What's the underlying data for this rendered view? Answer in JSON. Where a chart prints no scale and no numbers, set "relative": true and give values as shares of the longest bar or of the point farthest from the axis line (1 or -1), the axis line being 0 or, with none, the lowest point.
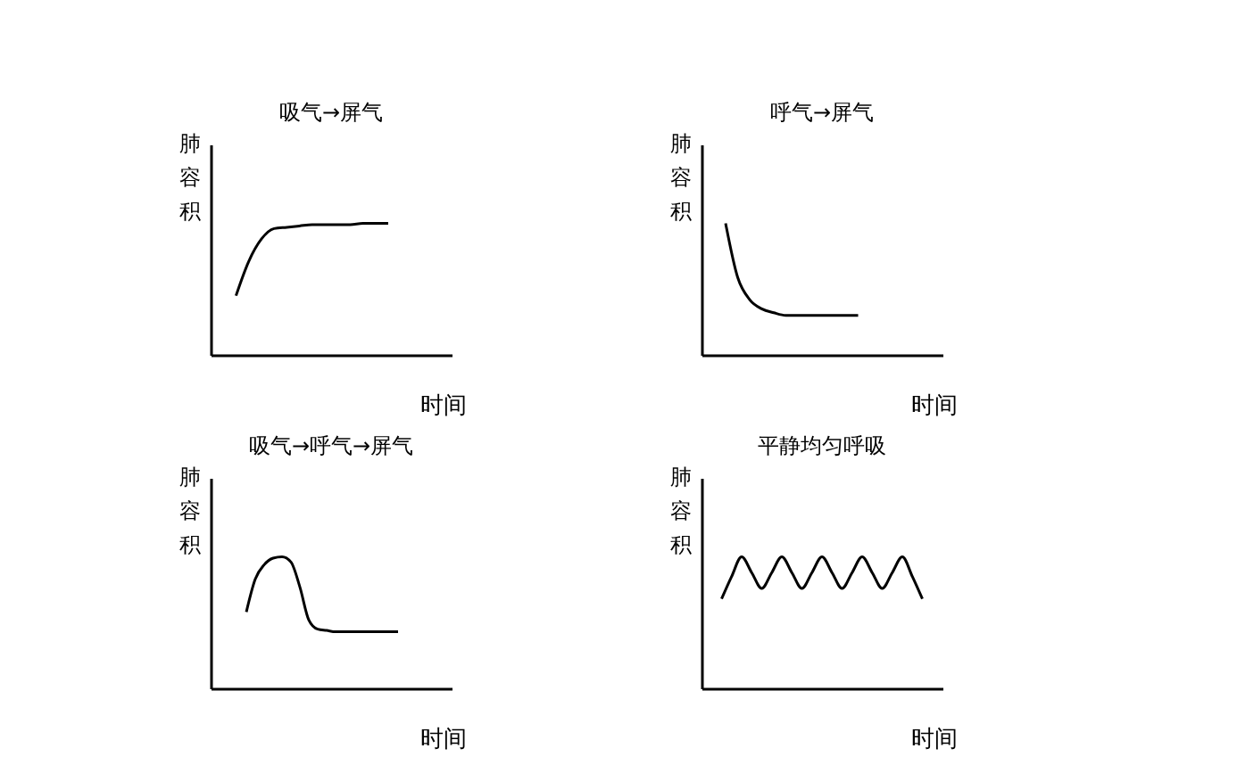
{
  "chart_data": [
    {
      "type": "line",
      "title": "吸气→屏气",
      "xlabel": "时间",
      "ylabel": "肺容积",
      "relative": true,
      "color": "#000000",
      "categories": [
        null,
        null,
        null,
        null,
        null,
        null,
        null,
        null,
        null,
        null,
        null,
        null,
        null,
        null,
        null,
        null,
        null,
        null,
        null,
        null
      ],
      "values": [
        null,
        null,
        0.45,
        0.71,
        0.88,
        0.96,
        0.97,
        0.98,
        0.99,
        0.99,
        0.99,
        0.99,
        1.0,
        1.0,
        1.0,
        null,
        null,
        null,
        null,
        null
      ]
    },
    {
      "type": "line",
      "title": "呼气→屏气",
      "xlabel": "时间",
      "ylabel": "肺容积",
      "relative": true,
      "color": "#000000",
      "categories": [
        null,
        null,
        null,
        null,
        null,
        null,
        null,
        null,
        null,
        null,
        null,
        null,
        null,
        null,
        null,
        null,
        null,
        null,
        null,
        null,
        null
      ],
      "values": [
        null,
        null,
        1.0,
        0.59,
        0.42,
        0.35,
        0.32,
        0.3,
        0.3,
        0.3,
        0.3,
        0.3,
        0.3,
        0.3,
        null,
        null,
        null,
        null,
        null,
        null,
        null
      ]
    },
    {
      "type": "line",
      "title": "吸气→呼气→屏气",
      "xlabel": "时间",
      "ylabel": "肺容积",
      "relative": true,
      "color": "#000000",
      "categories": [
        null,
        null,
        null,
        null,
        null,
        null,
        null,
        null,
        null,
        null,
        null,
        null,
        null,
        null,
        null,
        null,
        null,
        null,
        null,
        null,
        null,
        null,
        null,
        null,
        null,
        null,
        null,
        null
      ],
      "values": [
        null,
        null,
        null,
        null,
        0.58,
        0.83,
        0.94,
        0.99,
        1.0,
        0.96,
        0.77,
        0.52,
        0.45,
        0.44,
        0.43,
        0.43,
        0.43,
        0.43,
        0.43,
        0.43,
        0.43,
        0.43,
        null,
        null,
        null,
        null,
        null,
        null
      ]
    },
    {
      "type": "line",
      "title": "平静均匀呼吸",
      "xlabel": "时间",
      "ylabel": "肺容积",
      "relative": true,
      "color": "#000000",
      "categories": [
        null,
        null,
        null,
        null,
        null,
        null,
        null,
        null,
        null,
        null,
        null,
        null,
        null,
        null,
        null,
        null,
        null,
        null,
        null,
        null,
        null,
        null,
        null,
        null,
        null
      ],
      "values": [
        null,
        null,
        0.68,
        0.85,
        1.0,
        0.88,
        0.76,
        0.88,
        1.0,
        0.88,
        0.76,
        0.88,
        1.0,
        0.88,
        0.76,
        0.88,
        1.0,
        0.88,
        0.76,
        0.88,
        1.0,
        0.85,
        0.68,
        null,
        null
      ]
    }
  ]
}
